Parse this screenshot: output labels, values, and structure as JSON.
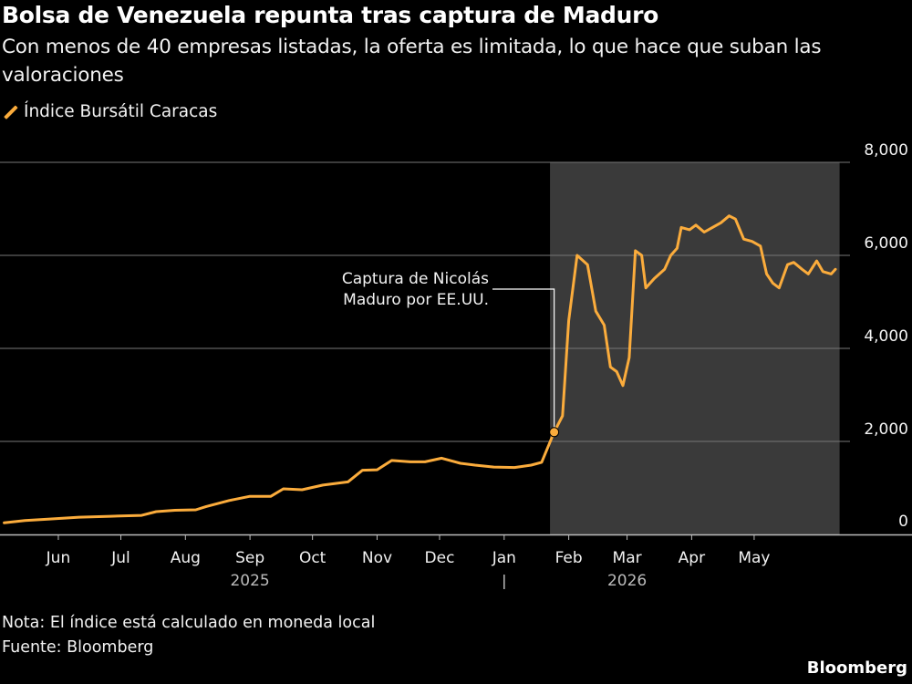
{
  "header": {
    "title": "Bolsa de Venezuela repunta tras captura de Maduro",
    "subtitle": "Con menos de 40 empresas listadas, la oferta es limitada, lo que hace que suban las valoraciones"
  },
  "legend": {
    "label": "Índice Bursátil Caracas"
  },
  "footer": {
    "note": "Nota: El índice está calculado en moneda local",
    "source": "Fuente: Bloomberg",
    "brand": "Bloomberg"
  },
  "colors": {
    "line": "#fbac3c",
    "background": "#000000",
    "shade": "#3a3a3a",
    "grid": "#777777"
  },
  "chart_data": {
    "type": "line",
    "series": [
      {
        "name": "Índice Bursátil Caracas",
        "points": [
          [
            "2025-05-20",
            250
          ],
          [
            "2025-05-30",
            300
          ],
          [
            "2025-06-10",
            330
          ],
          [
            "2025-06-25",
            370
          ],
          [
            "2025-07-10",
            390
          ],
          [
            "2025-07-25",
            410
          ],
          [
            "2025-08-01",
            490
          ],
          [
            "2025-08-10",
            520
          ],
          [
            "2025-08-20",
            530
          ],
          [
            "2025-08-25",
            600
          ],
          [
            "2025-09-05",
            730
          ],
          [
            "2025-09-15",
            820
          ],
          [
            "2025-09-25",
            820
          ],
          [
            "2025-10-01",
            980
          ],
          [
            "2025-10-10",
            960
          ],
          [
            "2025-10-20",
            1060
          ],
          [
            "2025-11-01",
            1130
          ],
          [
            "2025-11-08",
            1380
          ],
          [
            "2025-11-15",
            1390
          ],
          [
            "2025-11-22",
            1590
          ],
          [
            "2025-12-01",
            1560
          ],
          [
            "2025-12-08",
            1560
          ],
          [
            "2025-12-16",
            1640
          ],
          [
            "2025-12-25",
            1530
          ],
          [
            "2026-01-01",
            1490
          ],
          [
            "2026-01-10",
            1450
          ],
          [
            "2026-01-20",
            1440
          ],
          [
            "2026-01-28",
            1490
          ],
          [
            "2026-02-02",
            1550
          ],
          [
            "2026-02-08",
            2200
          ],
          [
            "2026-02-12",
            2550
          ],
          [
            "2026-02-15",
            4600
          ],
          [
            "2026-02-19",
            6000
          ],
          [
            "2026-02-24",
            5800
          ],
          [
            "2026-02-28",
            4800
          ],
          [
            "2026-03-04",
            4500
          ],
          [
            "2026-03-07",
            3600
          ],
          [
            "2026-03-10",
            3500
          ],
          [
            "2026-03-13",
            3200
          ],
          [
            "2026-03-16",
            3800
          ],
          [
            "2026-03-19",
            6100
          ],
          [
            "2026-03-22",
            6000
          ],
          [
            "2026-03-24",
            5300
          ],
          [
            "2026-03-28",
            5500
          ],
          [
            "2026-04-02",
            5700
          ],
          [
            "2026-04-05",
            6000
          ],
          [
            "2026-04-08",
            6150
          ],
          [
            "2026-04-10",
            6600
          ],
          [
            "2026-04-14",
            6550
          ],
          [
            "2026-04-17",
            6650
          ],
          [
            "2026-04-21",
            6500
          ],
          [
            "2026-04-25",
            6600
          ],
          [
            "2026-04-29",
            6700
          ],
          [
            "2026-05-03",
            6850
          ],
          [
            "2026-05-06",
            6780
          ],
          [
            "2026-05-10",
            6350
          ],
          [
            "2026-05-14",
            6300
          ],
          [
            "2026-05-18",
            6200
          ],
          [
            "2026-05-21",
            5600
          ],
          [
            "2026-05-24",
            5400
          ],
          [
            "2026-05-27",
            5300
          ],
          [
            "2026-05-31",
            5800
          ],
          [
            "2026-06-03",
            5850
          ],
          [
            "2026-06-07",
            5700
          ],
          [
            "2026-06-10",
            5600
          ],
          [
            "2026-06-14",
            5880
          ],
          [
            "2026-06-17",
            5650
          ],
          [
            "2026-06-21",
            5600
          ],
          [
            "2026-06-23",
            5700
          ]
        ]
      }
    ],
    "yticks": [
      0,
      2000,
      4000,
      6000,
      8000
    ],
    "ytick_labels": [
      "0",
      "2,000",
      "4,000",
      "6,000",
      "8,000"
    ],
    "ylim": [
      0,
      8000
    ],
    "xticks": [
      {
        "date": "2025-06-15",
        "label": "Jun"
      },
      {
        "date": "2025-07-15",
        "label": "Jul"
      },
      {
        "date": "2025-08-15",
        "label": "Aug"
      },
      {
        "date": "2025-09-15",
        "label": "Sep"
      },
      {
        "date": "2025-10-15",
        "label": "Oct"
      },
      {
        "date": "2025-11-15",
        "label": "Nov"
      },
      {
        "date": "2025-12-15",
        "label": "Dec"
      },
      {
        "date": "2026-01-15",
        "label": "Jan"
      },
      {
        "date": "2026-02-15",
        "label": "Feb"
      },
      {
        "date": "2026-03-15",
        "label": "Mar"
      },
      {
        "date": "2026-04-15",
        "label": "Apr"
      },
      {
        "date": "2026-05-15",
        "label": "May"
      }
    ],
    "year_labels": [
      {
        "date": "2025-09-15",
        "label": "2025"
      },
      {
        "date": "2026-03-15",
        "label": "2026"
      }
    ],
    "year_divider": "2026-01-15",
    "xlim": [
      "2025-05-18",
      "2026-06-30"
    ],
    "shaded_range": [
      "2026-02-06",
      "2026-06-25"
    ],
    "annotation": {
      "line1": "Captura de Nicolás",
      "line2": "Maduro por EE.UU.",
      "date": "2026-02-08",
      "value": 2200
    },
    "grid": true
  }
}
